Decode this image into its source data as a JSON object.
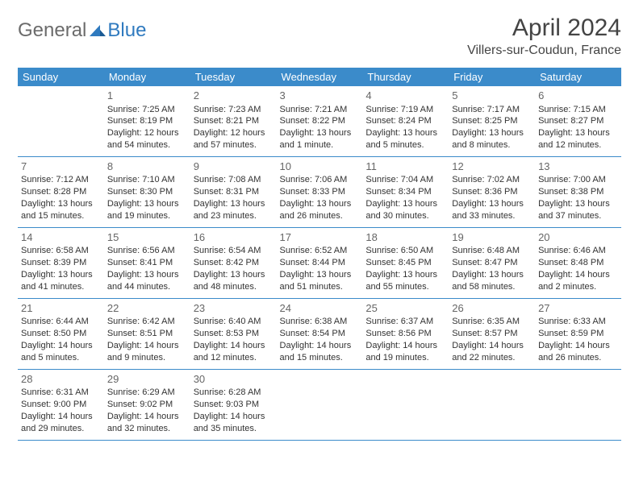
{
  "logo": {
    "general": "General",
    "blue": "Blue"
  },
  "title": "April 2024",
  "location": "Villers-sur-Coudun, France",
  "colors": {
    "header_bg": "#3b8bca",
    "header_text": "#ffffff",
    "border": "#3b8bca",
    "text": "#333333",
    "daynum": "#666666",
    "logo_gray": "#6b6b6b",
    "logo_blue": "#2f7abf",
    "background": "#ffffff"
  },
  "weekdays": [
    "Sunday",
    "Monday",
    "Tuesday",
    "Wednesday",
    "Thursday",
    "Friday",
    "Saturday"
  ],
  "layout": {
    "lead_blanks": 1,
    "trail_blanks": 4
  },
  "days": [
    {
      "n": "1",
      "sr": "Sunrise: 7:25 AM",
      "ss": "Sunset: 8:19 PM",
      "d1": "Daylight: 12 hours",
      "d2": "and 54 minutes."
    },
    {
      "n": "2",
      "sr": "Sunrise: 7:23 AM",
      "ss": "Sunset: 8:21 PM",
      "d1": "Daylight: 12 hours",
      "d2": "and 57 minutes."
    },
    {
      "n": "3",
      "sr": "Sunrise: 7:21 AM",
      "ss": "Sunset: 8:22 PM",
      "d1": "Daylight: 13 hours",
      "d2": "and 1 minute."
    },
    {
      "n": "4",
      "sr": "Sunrise: 7:19 AM",
      "ss": "Sunset: 8:24 PM",
      "d1": "Daylight: 13 hours",
      "d2": "and 5 minutes."
    },
    {
      "n": "5",
      "sr": "Sunrise: 7:17 AM",
      "ss": "Sunset: 8:25 PM",
      "d1": "Daylight: 13 hours",
      "d2": "and 8 minutes."
    },
    {
      "n": "6",
      "sr": "Sunrise: 7:15 AM",
      "ss": "Sunset: 8:27 PM",
      "d1": "Daylight: 13 hours",
      "d2": "and 12 minutes."
    },
    {
      "n": "7",
      "sr": "Sunrise: 7:12 AM",
      "ss": "Sunset: 8:28 PM",
      "d1": "Daylight: 13 hours",
      "d2": "and 15 minutes."
    },
    {
      "n": "8",
      "sr": "Sunrise: 7:10 AM",
      "ss": "Sunset: 8:30 PM",
      "d1": "Daylight: 13 hours",
      "d2": "and 19 minutes."
    },
    {
      "n": "9",
      "sr": "Sunrise: 7:08 AM",
      "ss": "Sunset: 8:31 PM",
      "d1": "Daylight: 13 hours",
      "d2": "and 23 minutes."
    },
    {
      "n": "10",
      "sr": "Sunrise: 7:06 AM",
      "ss": "Sunset: 8:33 PM",
      "d1": "Daylight: 13 hours",
      "d2": "and 26 minutes."
    },
    {
      "n": "11",
      "sr": "Sunrise: 7:04 AM",
      "ss": "Sunset: 8:34 PM",
      "d1": "Daylight: 13 hours",
      "d2": "and 30 minutes."
    },
    {
      "n": "12",
      "sr": "Sunrise: 7:02 AM",
      "ss": "Sunset: 8:36 PM",
      "d1": "Daylight: 13 hours",
      "d2": "and 33 minutes."
    },
    {
      "n": "13",
      "sr": "Sunrise: 7:00 AM",
      "ss": "Sunset: 8:38 PM",
      "d1": "Daylight: 13 hours",
      "d2": "and 37 minutes."
    },
    {
      "n": "14",
      "sr": "Sunrise: 6:58 AM",
      "ss": "Sunset: 8:39 PM",
      "d1": "Daylight: 13 hours",
      "d2": "and 41 minutes."
    },
    {
      "n": "15",
      "sr": "Sunrise: 6:56 AM",
      "ss": "Sunset: 8:41 PM",
      "d1": "Daylight: 13 hours",
      "d2": "and 44 minutes."
    },
    {
      "n": "16",
      "sr": "Sunrise: 6:54 AM",
      "ss": "Sunset: 8:42 PM",
      "d1": "Daylight: 13 hours",
      "d2": "and 48 minutes."
    },
    {
      "n": "17",
      "sr": "Sunrise: 6:52 AM",
      "ss": "Sunset: 8:44 PM",
      "d1": "Daylight: 13 hours",
      "d2": "and 51 minutes."
    },
    {
      "n": "18",
      "sr": "Sunrise: 6:50 AM",
      "ss": "Sunset: 8:45 PM",
      "d1": "Daylight: 13 hours",
      "d2": "and 55 minutes."
    },
    {
      "n": "19",
      "sr": "Sunrise: 6:48 AM",
      "ss": "Sunset: 8:47 PM",
      "d1": "Daylight: 13 hours",
      "d2": "and 58 minutes."
    },
    {
      "n": "20",
      "sr": "Sunrise: 6:46 AM",
      "ss": "Sunset: 8:48 PM",
      "d1": "Daylight: 14 hours",
      "d2": "and 2 minutes."
    },
    {
      "n": "21",
      "sr": "Sunrise: 6:44 AM",
      "ss": "Sunset: 8:50 PM",
      "d1": "Daylight: 14 hours",
      "d2": "and 5 minutes."
    },
    {
      "n": "22",
      "sr": "Sunrise: 6:42 AM",
      "ss": "Sunset: 8:51 PM",
      "d1": "Daylight: 14 hours",
      "d2": "and 9 minutes."
    },
    {
      "n": "23",
      "sr": "Sunrise: 6:40 AM",
      "ss": "Sunset: 8:53 PM",
      "d1": "Daylight: 14 hours",
      "d2": "and 12 minutes."
    },
    {
      "n": "24",
      "sr": "Sunrise: 6:38 AM",
      "ss": "Sunset: 8:54 PM",
      "d1": "Daylight: 14 hours",
      "d2": "and 15 minutes."
    },
    {
      "n": "25",
      "sr": "Sunrise: 6:37 AM",
      "ss": "Sunset: 8:56 PM",
      "d1": "Daylight: 14 hours",
      "d2": "and 19 minutes."
    },
    {
      "n": "26",
      "sr": "Sunrise: 6:35 AM",
      "ss": "Sunset: 8:57 PM",
      "d1": "Daylight: 14 hours",
      "d2": "and 22 minutes."
    },
    {
      "n": "27",
      "sr": "Sunrise: 6:33 AM",
      "ss": "Sunset: 8:59 PM",
      "d1": "Daylight: 14 hours",
      "d2": "and 26 minutes."
    },
    {
      "n": "28",
      "sr": "Sunrise: 6:31 AM",
      "ss": "Sunset: 9:00 PM",
      "d1": "Daylight: 14 hours",
      "d2": "and 29 minutes."
    },
    {
      "n": "29",
      "sr": "Sunrise: 6:29 AM",
      "ss": "Sunset: 9:02 PM",
      "d1": "Daylight: 14 hours",
      "d2": "and 32 minutes."
    },
    {
      "n": "30",
      "sr": "Sunrise: 6:28 AM",
      "ss": "Sunset: 9:03 PM",
      "d1": "Daylight: 14 hours",
      "d2": "and 35 minutes."
    }
  ]
}
